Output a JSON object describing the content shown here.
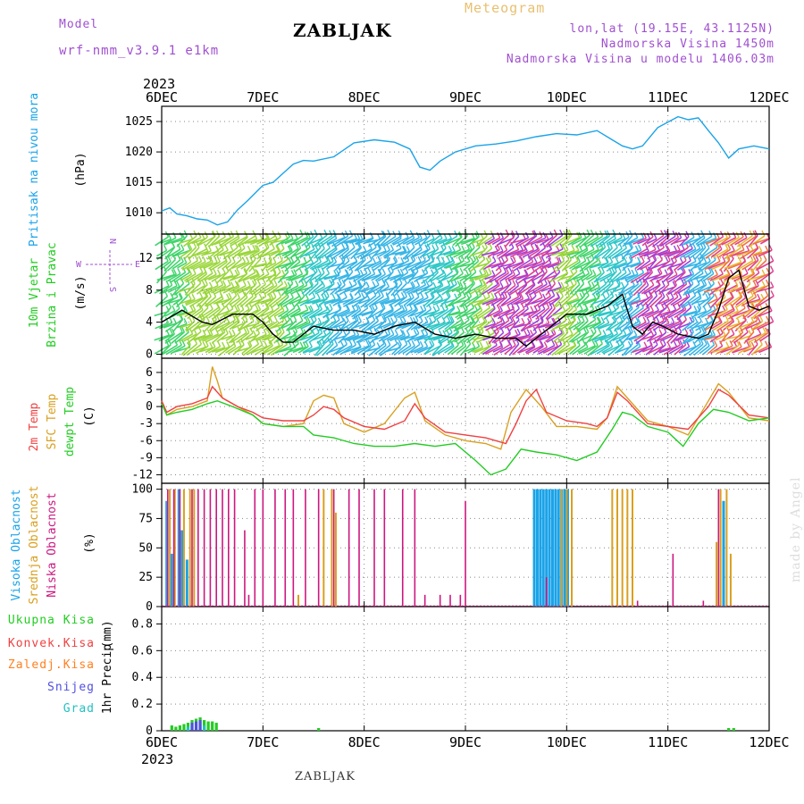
{
  "header": {
    "model_label": "Model",
    "model_name": "wrf-nmm_v3.9.1  e1km",
    "station": "ZABLJAK",
    "meteogram_label": "Meteogram",
    "coords": "lon,lat (19.15E, 43.1125N)",
    "elevation": "Nadmorska Visina 1450m",
    "model_elevation": "Nadmorska Visina u modelu 1406.03m",
    "year_top": "2023",
    "year_bottom": "2023",
    "footer_station": "ZABLJAK",
    "watermark": "made by Angel"
  },
  "colors": {
    "pressure": "#1aa3e8",
    "wind_speed": "#000000",
    "t2m": "#f04040",
    "sfc": "#d9a020",
    "dewpoint": "#22cc22",
    "high_cloud": "#1aa3e8",
    "mid_cloud": "#d9a020",
    "low_cloud": "#cc1880",
    "total_precip": "#22cc22",
    "conv_precip": "#f04040",
    "frz_precip": "#ff8020",
    "snow": "#5050e0",
    "graupel": "#22c0c0",
    "model_label": "#a050d0"
  },
  "axis": {
    "x_ticks": [
      "6DEC",
      "7DEC",
      "8DEC",
      "9DEC",
      "10DEC",
      "11DEC",
      "12DEC"
    ]
  },
  "wind_compass": {
    "n": "N",
    "w": "W",
    "e": "E",
    "s": "S"
  },
  "chart_data": [
    {
      "type": "line",
      "ylabel": "Pritisak na nivou mora",
      "unit": "(hPa)",
      "yticks": [
        1010,
        1015,
        1020,
        1025
      ],
      "ylim": [
        1006.5,
        1027.5
      ],
      "grid": true,
      "series": [
        {
          "x": [
            0,
            0.08,
            0.15,
            0.25,
            0.35,
            0.45,
            0.55,
            0.65,
            0.75,
            0.85,
            1.0,
            1.1,
            1.2,
            1.3,
            1.4,
            1.5,
            1.7,
            1.9,
            2.1,
            2.3,
            2.45,
            2.55,
            2.65,
            2.75,
            2.9,
            3.1,
            3.3,
            3.5,
            3.7,
            3.9,
            4.1,
            4.3,
            4.45,
            4.55,
            4.65,
            4.75,
            4.9,
            5.1,
            5.2,
            5.3,
            5.4,
            5.5,
            5.6,
            5.7,
            5.85,
            6.0
          ],
          "values": [
            1010.3,
            1010.8,
            1009.8,
            1009.5,
            1009.0,
            1008.8,
            1008.0,
            1008.5,
            1010.5,
            1012.0,
            1014.5,
            1015.0,
            1016.5,
            1018.0,
            1018.6,
            1018.5,
            1019.2,
            1021.5,
            1022.0,
            1021.6,
            1020.5,
            1017.5,
            1017.0,
            1018.5,
            1020.0,
            1021.0,
            1021.3,
            1021.8,
            1022.5,
            1023.0,
            1022.8,
            1023.5,
            1022.0,
            1021.0,
            1020.5,
            1021.0,
            1024.0,
            1025.8,
            1025.3,
            1025.6,
            1023.5,
            1021.5,
            1019.0,
            1020.5,
            1021.0,
            1020.5
          ]
        }
      ]
    },
    {
      "type": "line",
      "ylabel": "10m Vjetar Brzina i Pravac",
      "ylabel_line1": "10m Vjetar",
      "ylabel_line2": "Brzina i Pravac",
      "unit": "(m/s)",
      "yticks": [
        0,
        4,
        8,
        12
      ],
      "ylim": [
        -0.5,
        15
      ],
      "grid": true,
      "series": [
        {
          "x": [
            0,
            0.2,
            0.4,
            0.5,
            0.7,
            0.9,
            1.0,
            1.1,
            1.2,
            1.3,
            1.5,
            1.7,
            1.9,
            2.1,
            2.3,
            2.5,
            2.7,
            2.9,
            3.1,
            3.3,
            3.5,
            3.6,
            3.8,
            3.9,
            4.0,
            4.2,
            4.4,
            4.55,
            4.65,
            4.75,
            4.85,
            4.95,
            5.1,
            5.3,
            5.4,
            5.5,
            5.6,
            5.7,
            5.8,
            5.9,
            6.0
          ],
          "values": [
            4.0,
            5.5,
            4.0,
            3.7,
            5.0,
            5.0,
            4.0,
            2.5,
            1.5,
            1.5,
            3.5,
            3.0,
            3.0,
            2.5,
            3.5,
            4.0,
            2.5,
            2.0,
            2.5,
            2.0,
            2.0,
            1.0,
            3.0,
            4.0,
            5.0,
            5.0,
            6.0,
            7.5,
            3.5,
            2.5,
            4.0,
            3.5,
            2.5,
            2.0,
            2.5,
            5.5,
            9.5,
            10.5,
            6.0,
            5.5,
            6.0
          ]
        }
      ]
    },
    {
      "type": "line",
      "ylabel": "2m Temp / SFC Temp / dewpt Temp",
      "unit": "(C)",
      "yticks": [
        -12,
        -9,
        -6,
        -3,
        0,
        3,
        6
      ],
      "ylim": [
        -13.5,
        8.5
      ],
      "grid": true,
      "series": [
        {
          "name": "2m Temp",
          "x": [
            0,
            0.05,
            0.15,
            0.3,
            0.45,
            0.5,
            0.6,
            0.75,
            0.9,
            1.0,
            1.2,
            1.4,
            1.5,
            1.6,
            1.7,
            1.8,
            2.0,
            2.2,
            2.4,
            2.5,
            2.6,
            2.8,
            3.0,
            3.2,
            3.4,
            3.5,
            3.6,
            3.7,
            3.8,
            4.0,
            4.2,
            4.3,
            4.4,
            4.5,
            4.6,
            4.8,
            5.0,
            5.2,
            5.4,
            5.5,
            5.6,
            5.8,
            6.0
          ],
          "values": [
            1.0,
            -1.0,
            0.0,
            0.5,
            1.5,
            3.5,
            1.5,
            0.0,
            -1.0,
            -2.0,
            -2.5,
            -2.5,
            -1.5,
            0.0,
            -0.5,
            -2.0,
            -3.5,
            -4.0,
            -2.5,
            0.5,
            -2.0,
            -4.5,
            -5.0,
            -5.5,
            -6.5,
            -3.0,
            1.0,
            3.0,
            -1.0,
            -2.5,
            -3.0,
            -3.5,
            -2.0,
            2.5,
            1.0,
            -3.0,
            -3.5,
            -4.0,
            0.0,
            3.0,
            2.0,
            -1.5,
            -2.0
          ]
        },
        {
          "name": "SFC Temp",
          "x": [
            0,
            0.05,
            0.15,
            0.3,
            0.45,
            0.5,
            0.55,
            0.6,
            0.75,
            0.9,
            1.0,
            1.2,
            1.4,
            1.5,
            1.6,
            1.7,
            1.8,
            2.0,
            2.2,
            2.4,
            2.5,
            2.6,
            2.8,
            3.0,
            3.2,
            3.35,
            3.45,
            3.6,
            3.75,
            3.9,
            4.1,
            4.3,
            4.4,
            4.5,
            4.6,
            4.8,
            5.0,
            5.2,
            5.4,
            5.5,
            5.6,
            5.8,
            6.0
          ],
          "values": [
            1.0,
            -1.5,
            -0.5,
            0.0,
            1.0,
            7.0,
            4.5,
            1.5,
            0.0,
            -1.5,
            -3.0,
            -3.5,
            -3.0,
            1.0,
            2.0,
            1.5,
            -3.0,
            -4.5,
            -3.0,
            1.5,
            2.5,
            -2.5,
            -5.0,
            -6.0,
            -6.5,
            -7.5,
            -1.0,
            3.0,
            0.0,
            -3.5,
            -3.5,
            -4.0,
            -2.0,
            3.5,
            1.5,
            -2.5,
            -3.5,
            -5.0,
            1.0,
            4.0,
            2.5,
            -2.0,
            -2.5
          ]
        },
        {
          "name": "dewpt Temp",
          "x": [
            0,
            0.05,
            0.15,
            0.3,
            0.45,
            0.55,
            0.7,
            0.9,
            1.0,
            1.2,
            1.4,
            1.5,
            1.7,
            1.9,
            2.1,
            2.3,
            2.5,
            2.7,
            2.9,
            3.1,
            3.25,
            3.4,
            3.55,
            3.7,
            3.9,
            4.1,
            4.3,
            4.45,
            4.55,
            4.65,
            4.8,
            5.0,
            5.15,
            5.3,
            5.45,
            5.6,
            5.8,
            6.0
          ],
          "values": [
            0.5,
            -1.5,
            -1.0,
            -0.5,
            0.5,
            1.0,
            0.0,
            -1.5,
            -3.0,
            -3.5,
            -3.5,
            -5.0,
            -5.5,
            -6.5,
            -7.0,
            -7.0,
            -6.5,
            -7.0,
            -6.5,
            -9.5,
            -12.0,
            -11.0,
            -7.5,
            -8.0,
            -8.5,
            -9.5,
            -8.0,
            -4.0,
            -1.0,
            -1.5,
            -3.5,
            -4.5,
            -7.0,
            -3.0,
            -0.5,
            -1.0,
            -2.5,
            -2.0
          ]
        }
      ]
    },
    {
      "type": "bar",
      "ylabel": "Visoka Oblacnost / Srednja Oblacnost / Niska Oblacnost",
      "unit": "(%)",
      "yticks": [
        0,
        25,
        50,
        75,
        100
      ],
      "ylim": [
        0,
        105
      ],
      "grid": true,
      "series": [
        {
          "name": "Visoka Oblacnost",
          "x": [
            0.05,
            0.1,
            0.17,
            0.2,
            0.25,
            3.68,
            3.71,
            3.74,
            3.77,
            3.8,
            3.83,
            3.86,
            3.89,
            3.92,
            3.95,
            3.98,
            4.01,
            5.55
          ],
          "values": [
            90,
            45,
            100,
            65,
            40,
            100,
            100,
            100,
            100,
            100,
            100,
            100,
            100,
            100,
            100,
            100,
            100,
            90
          ]
        },
        {
          "name": "Srednja Oblacnost",
          "x": [
            0.08,
            0.13,
            0.22,
            0.28,
            0.32,
            1.35,
            1.6,
            1.68,
            1.72,
            3.95,
            4.0,
            4.05,
            4.45,
            4.5,
            4.55,
            4.6,
            4.65,
            5.48,
            5.52,
            5.58,
            5.62
          ],
          "values": [
            100,
            100,
            100,
            100,
            100,
            10,
            100,
            100,
            80,
            100,
            100,
            100,
            100,
            100,
            100,
            100,
            100,
            55,
            100,
            100,
            45
          ]
        },
        {
          "name": "Niska Oblacnost",
          "x": [
            0.06,
            0.12,
            0.18,
            0.3,
            0.36,
            0.42,
            0.48,
            0.54,
            0.6,
            0.66,
            0.72,
            0.82,
            0.86,
            0.92,
            1.0,
            1.12,
            1.22,
            1.3,
            1.42,
            1.55,
            1.7,
            1.85,
            1.95,
            2.1,
            2.2,
            2.38,
            2.5,
            2.6,
            2.75,
            2.85,
            2.95,
            3.0,
            3.8,
            4.7,
            5.05,
            5.35,
            5.5
          ],
          "values": [
            100,
            100,
            100,
            100,
            100,
            100,
            100,
            100,
            100,
            100,
            100,
            65,
            10,
            100,
            100,
            100,
            100,
            100,
            100,
            100,
            100,
            100,
            100,
            100,
            100,
            100,
            100,
            10,
            10,
            10,
            10,
            90,
            25,
            5,
            45,
            5,
            100
          ]
        }
      ]
    },
    {
      "type": "bar",
      "ylabel": "1hr Precip",
      "unit": "(mm)",
      "yticks": [
        0,
        0.2,
        0.4,
        0.6,
        0.8
      ],
      "ylim": [
        0,
        0.93
      ],
      "grid": true,
      "series": [
        {
          "name": "Ukupna Kisa",
          "x": [
            0.1,
            0.14,
            0.18,
            0.22,
            0.26,
            0.3,
            0.34,
            0.38,
            0.42,
            0.46,
            0.5,
            0.54,
            1.55,
            5.6,
            5.65
          ],
          "values": [
            0.04,
            0.03,
            0.04,
            0.05,
            0.06,
            0.08,
            0.09,
            0.1,
            0.08,
            0.07,
            0.07,
            0.06,
            0.02,
            0.02,
            0.02
          ]
        },
        {
          "name": "Konvek.Kisa",
          "x": [],
          "values": []
        },
        {
          "name": "Zaledj.Kisa",
          "x": [],
          "values": []
        },
        {
          "name": "Snijeg",
          "x": [
            0.3,
            0.34,
            0.38
          ],
          "values": [
            0.06,
            0.07,
            0.08
          ]
        },
        {
          "name": "Grad",
          "x": [
            0.26,
            0.42
          ],
          "values": [
            0.03,
            0.04
          ]
        }
      ]
    }
  ]
}
